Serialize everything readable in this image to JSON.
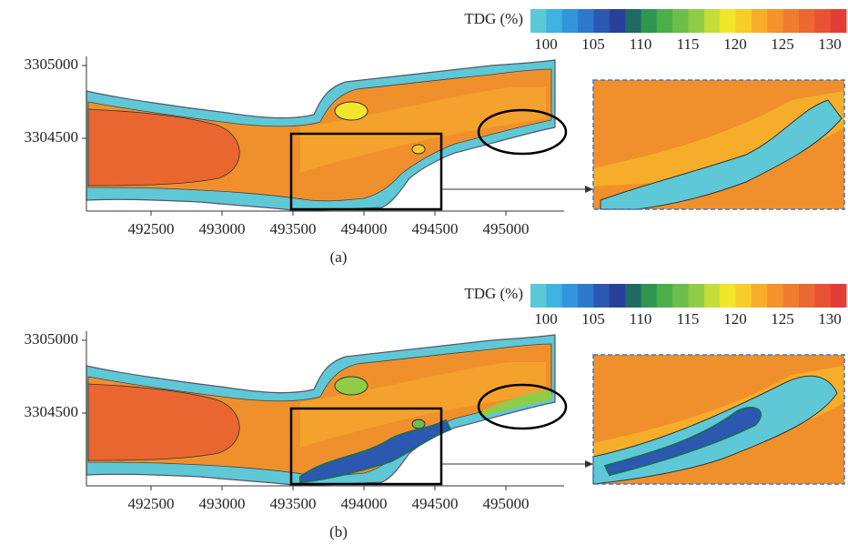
{
  "panels": [
    {
      "label": "(a)",
      "colorbar": {
        "title": "TDG (%)",
        "ticks": [
          100,
          105,
          110,
          115,
          120,
          125,
          130
        ]
      },
      "xticks": [
        492500,
        493000,
        493500,
        494000,
        494500,
        495000
      ],
      "yticks": [
        3305000,
        3304500
      ]
    },
    {
      "label": "(b)",
      "colorbar": {
        "title": "TDG (%)",
        "ticks": [
          100,
          105,
          110,
          115,
          120,
          125,
          130
        ]
      },
      "xticks": [
        492500,
        493000,
        493500,
        494000,
        494500,
        495000
      ],
      "yticks": [
        3305000,
        3304500
      ]
    }
  ]
}
